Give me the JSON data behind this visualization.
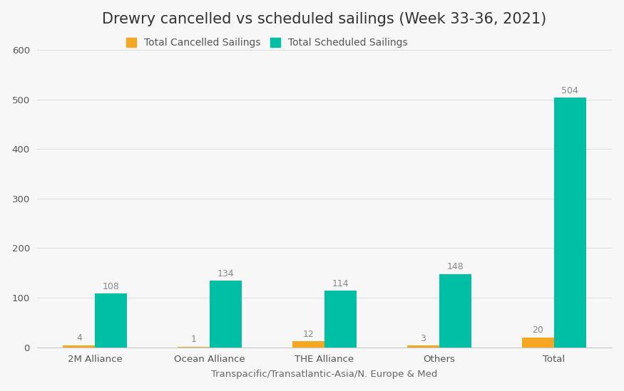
{
  "title": "Drewry cancelled vs scheduled sailings (Week 33-36, 2021)",
  "xlabel": "Transpacific/Transatlantic-Asia/N. Europe & Med",
  "categories": [
    "2M Alliance",
    "Ocean Alliance",
    "THE Alliance",
    "Others",
    "Total"
  ],
  "cancelled": [
    4,
    1,
    12,
    3,
    20
  ],
  "scheduled": [
    108,
    134,
    114,
    148,
    504
  ],
  "cancelled_color": "#F5A623",
  "scheduled_color": "#00BFA5",
  "ylim": [
    0,
    630
  ],
  "yticks": [
    0,
    100,
    200,
    300,
    400,
    500,
    600
  ],
  "legend_cancelled": "Total Cancelled Sailings",
  "legend_scheduled": "Total Scheduled Sailings",
  "bg_color": "#F7F7F7",
  "grid_color": "#E0E0E0",
  "bar_width": 0.28,
  "label_fontsize": 9,
  "title_fontsize": 15,
  "axis_fontsize": 9.5,
  "legend_fontsize": 10
}
